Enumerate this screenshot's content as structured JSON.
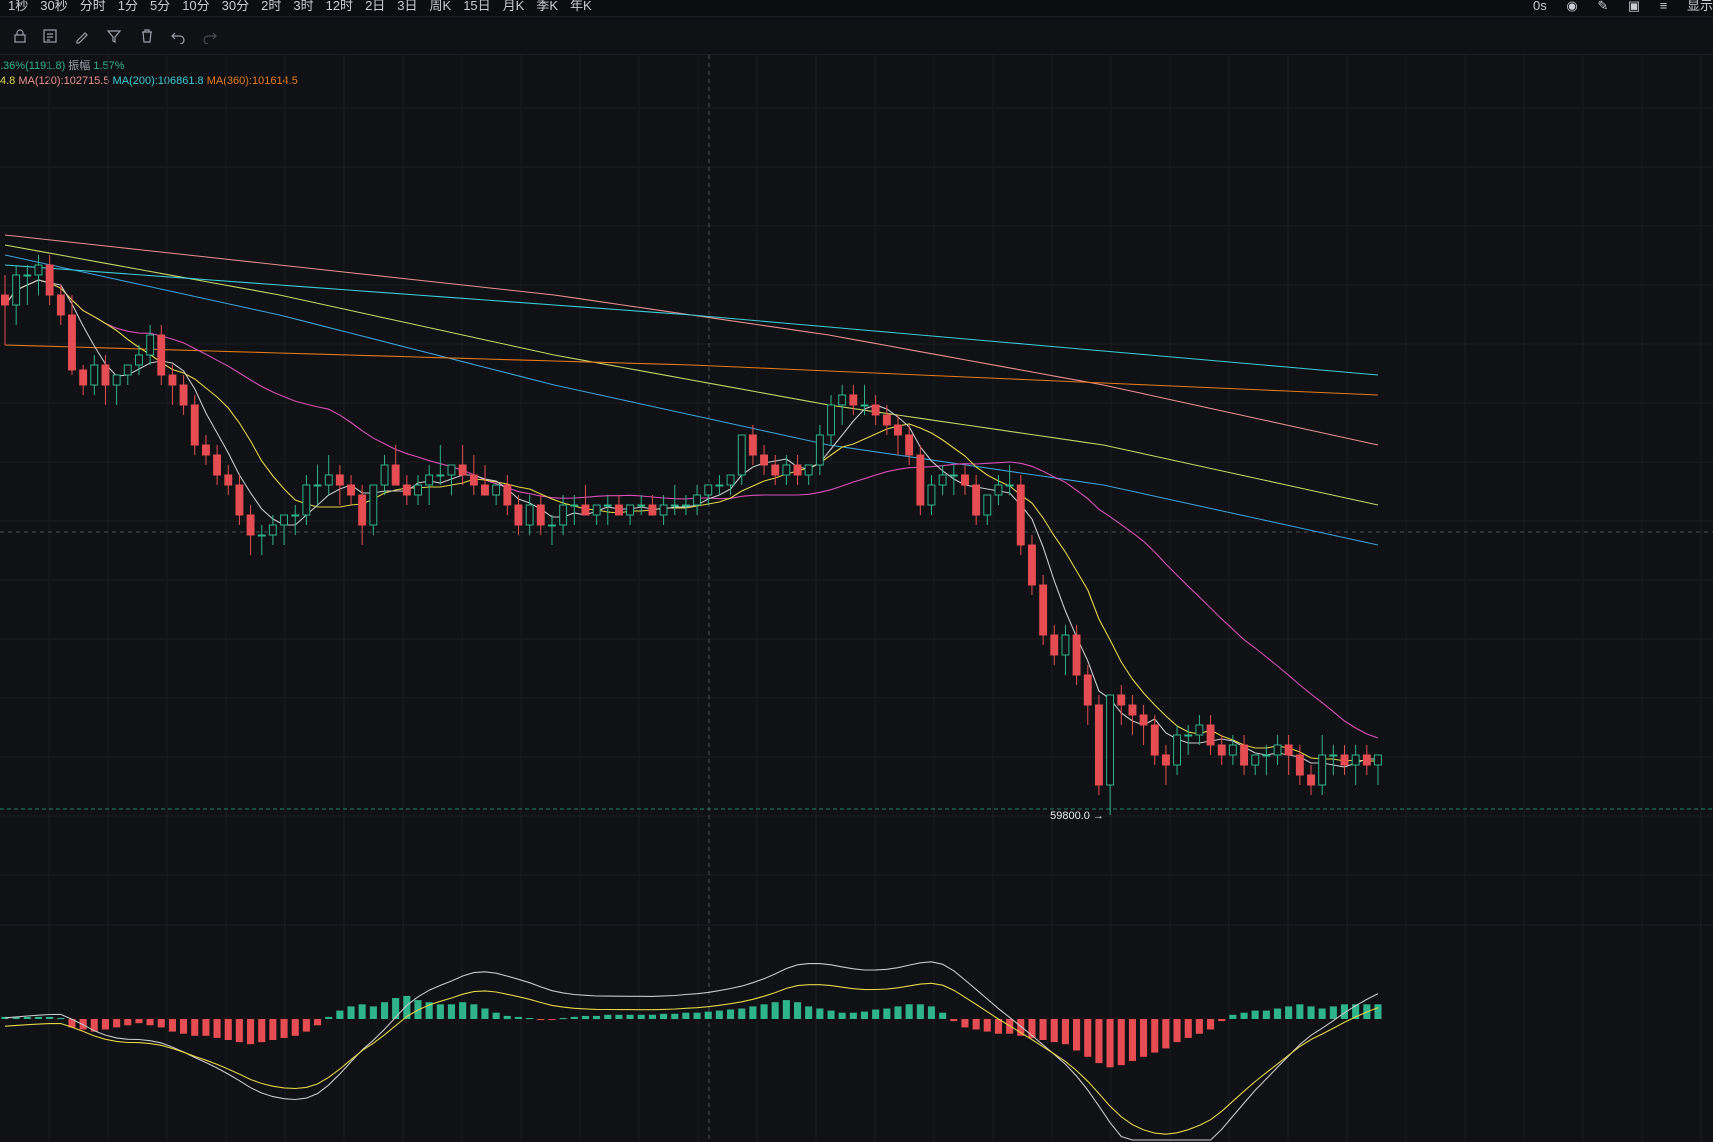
{
  "toolbar": {
    "intervals": [
      "1秒",
      "30秒",
      "分时",
      "1分",
      "5分",
      "10分",
      "30分",
      "2时",
      "3时",
      "12时",
      "2日",
      "3日",
      "周K",
      "15日",
      "月K",
      "季K",
      "年K"
    ],
    "right_value": "0s",
    "display_label": "显示",
    "tools": [
      "lock-icon",
      "template-icon",
      "draw-icon",
      "filter-icon",
      "trash-icon",
      "undo-icon",
      "redo-icon"
    ]
  },
  "info": {
    "change_text": ".36%(1191.8)",
    "amplitude_label": "振幅",
    "amplitude_value": "1.57%",
    "ma_prefix": "4.8",
    "ma120": "MA(120):102715.5",
    "ma200": "MA(200):106861.8",
    "ma360": "MA(360):101614.5"
  },
  "colors": {
    "up": "#2fb38b",
    "down": "#e54d52",
    "ma_fast": "#c8c8c8",
    "ma_short": "#e3d44a",
    "ma_magenta": "#d64fb7",
    "ma_blue": "#3b9fd6",
    "ma_green_yellow": "#c6d469",
    "ma_pink": "#e88f8f",
    "ma120": "#e0d06a",
    "ma200": "#3ecbd6",
    "ma360": "#e27a1c"
  },
  "chart_data": {
    "type": "candlestick",
    "low_label": "59800.0",
    "candles": [
      [
        93,
        95,
        88,
        92
      ],
      [
        92,
        96,
        90,
        95
      ],
      [
        95,
        96,
        92,
        95
      ],
      [
        95,
        97,
        93,
        96
      ],
      [
        96,
        97,
        92,
        93
      ],
      [
        93,
        94,
        90,
        91
      ],
      [
        91,
        93,
        85,
        85.5
      ],
      [
        85.5,
        86,
        83,
        84
      ],
      [
        84,
        87,
        83,
        86
      ],
      [
        86,
        87,
        82,
        84
      ],
      [
        84,
        85,
        82,
        85
      ],
      [
        85,
        86,
        84,
        86
      ],
      [
        86,
        88,
        85,
        87
      ],
      [
        87,
        90,
        86,
        89
      ],
      [
        89,
        90,
        84,
        85
      ],
      [
        85,
        86,
        82,
        84
      ],
      [
        84,
        85,
        81,
        82
      ],
      [
        82,
        83,
        77,
        78
      ],
      [
        78,
        79,
        76,
        77
      ],
      [
        77,
        78,
        74,
        75
      ],
      [
        75,
        76,
        73,
        74
      ],
      [
        74,
        75,
        70,
        71
      ],
      [
        71,
        72,
        67,
        69
      ],
      [
        69,
        70,
        67,
        69
      ],
      [
        69,
        71,
        68,
        70
      ],
      [
        70,
        71,
        68,
        71
      ],
      [
        71,
        72,
        69,
        71
      ],
      [
        71,
        75,
        70,
        74
      ],
      [
        74,
        76,
        72,
        74
      ],
      [
        74,
        77,
        73,
        75
      ],
      [
        75,
        76,
        72,
        74
      ],
      [
        74,
        75,
        72,
        73
      ],
      [
        73,
        74,
        68,
        70
      ],
      [
        70,
        74,
        69,
        74
      ],
      [
        74,
        77,
        73,
        76
      ],
      [
        76,
        78,
        74,
        74
      ],
      [
        74,
        75,
        72,
        73
      ],
      [
        73,
        75,
        72,
        74
      ],
      [
        74,
        76,
        72,
        75
      ],
      [
        75,
        78,
        74,
        75
      ],
      [
        75,
        76,
        73,
        76
      ],
      [
        76,
        78,
        74,
        75
      ],
      [
        75,
        77,
        73,
        74
      ],
      [
        74,
        76,
        73,
        73
      ],
      [
        73,
        74,
        72,
        74
      ],
      [
        74,
        75,
        71,
        72
      ],
      [
        72,
        73,
        69,
        70
      ],
      [
        70,
        73,
        69,
        72
      ],
      [
        72,
        73,
        69,
        70
      ],
      [
        70,
        71,
        68,
        70
      ],
      [
        70,
        73,
        69,
        72
      ],
      [
        72,
        73,
        70,
        72
      ],
      [
        72,
        74,
        71,
        71
      ],
      [
        71,
        72,
        70,
        72
      ],
      [
        72,
        73,
        70,
        72
      ],
      [
        72,
        73,
        71,
        71
      ],
      [
        71,
        72,
        70,
        72
      ],
      [
        72,
        73,
        71,
        72
      ],
      [
        72,
        73,
        71,
        71
      ],
      [
        71,
        73,
        70,
        72
      ],
      [
        72,
        74,
        71,
        72
      ],
      [
        72,
        73,
        71,
        72
      ],
      [
        72,
        74,
        71,
        73
      ],
      [
        73,
        74,
        72,
        74
      ],
      [
        74,
        75,
        73,
        74
      ],
      [
        74,
        75,
        73,
        75
      ],
      [
        75,
        79,
        74,
        79
      ],
      [
        79,
        80,
        76,
        77
      ],
      [
        77,
        78,
        75,
        76
      ],
      [
        76,
        77,
        74,
        75
      ],
      [
        75,
        77,
        74,
        76
      ],
      [
        76,
        77,
        74,
        75
      ],
      [
        75,
        76,
        74,
        76
      ],
      [
        76,
        80,
        75,
        79
      ],
      [
        79,
        83,
        78,
        82
      ],
      [
        82,
        84,
        80,
        83
      ],
      [
        83,
        84,
        81,
        82
      ],
      [
        82,
        84,
        81,
        82
      ],
      [
        82,
        83,
        80,
        81
      ],
      [
        81,
        82,
        79,
        80
      ],
      [
        80,
        81,
        77,
        79
      ],
      [
        79,
        80,
        76,
        77
      ],
      [
        77,
        78,
        71,
        72
      ],
      [
        72,
        75,
        71,
        74
      ],
      [
        74,
        76,
        73,
        75
      ],
      [
        75,
        76,
        73,
        75
      ],
      [
        75,
        76,
        73,
        74
      ],
      [
        74,
        75,
        70,
        71
      ],
      [
        71,
        73,
        70,
        73
      ],
      [
        73,
        75,
        72,
        74
      ],
      [
        74,
        76,
        73,
        74
      ],
      [
        74,
        75,
        67,
        68
      ],
      [
        68,
        69,
        63,
        64
      ],
      [
        64,
        65,
        58,
        59
      ],
      [
        59,
        60,
        56,
        57
      ],
      [
        57,
        60,
        55,
        59
      ],
      [
        59,
        60,
        54,
        55
      ],
      [
        55,
        56,
        50,
        52
      ],
      [
        52,
        53,
        43,
        44
      ],
      [
        44,
        53,
        41,
        53
      ],
      [
        53,
        54,
        50,
        52
      ],
      [
        52,
        53,
        49,
        51
      ],
      [
        51,
        52,
        48,
        50
      ],
      [
        50,
        51,
        46,
        47
      ],
      [
        47,
        48,
        44,
        46
      ],
      [
        46,
        50,
        45,
        49
      ],
      [
        49,
        50,
        47,
        49
      ],
      [
        49,
        51,
        48,
        50
      ],
      [
        50,
        51,
        47,
        48
      ],
      [
        48,
        49,
        46,
        47
      ],
      [
        47,
        49,
        46,
        48
      ],
      [
        48,
        49,
        45,
        46
      ],
      [
        46,
        47,
        45,
        47
      ],
      [
        47,
        48,
        45,
        47
      ],
      [
        47,
        49,
        46,
        48
      ],
      [
        48,
        49,
        45,
        47
      ],
      [
        47,
        48,
        44,
        45
      ],
      [
        45,
        46,
        43,
        44
      ],
      [
        44,
        49,
        43,
        47
      ],
      [
        47,
        48,
        45,
        47
      ],
      [
        47,
        48,
        45,
        46
      ],
      [
        46,
        48,
        44,
        47
      ],
      [
        47,
        48,
        45,
        46
      ],
      [
        46,
        47,
        44,
        47
      ]
    ],
    "ma_lines": [
      {
        "color_key": "ma200",
        "values": [
          96,
          91,
          85
        ]
      },
      {
        "color_key": "ma360",
        "values": [
          88,
          86,
          83
        ]
      }
    ],
    "macd": {
      "histogram": [
        2,
        2,
        2,
        2,
        2,
        1,
        -8,
        -10,
        -12,
        -10,
        -8,
        -6,
        -4,
        -6,
        -8,
        -12,
        -14,
        -16,
        -16,
        -18,
        -20,
        -22,
        -24,
        -22,
        -20,
        -18,
        -16,
        -12,
        -6,
        2,
        8,
        12,
        14,
        12,
        16,
        20,
        22,
        18,
        16,
        14,
        14,
        16,
        14,
        10,
        6,
        3,
        2,
        1,
        -1,
        -1,
        1,
        2,
        3,
        3,
        4,
        4,
        4,
        4,
        4,
        5,
        5,
        6,
        6,
        7,
        8,
        9,
        10,
        12,
        14,
        16,
        18,
        16,
        12,
        10,
        8,
        6,
        6,
        7,
        9,
        10,
        12,
        14,
        14,
        12,
        6,
        -2,
        -8,
        -10,
        -12,
        -14,
        -14,
        -16,
        -18,
        -20,
        -22,
        -24,
        -30,
        -36,
        -42,
        -46,
        -44,
        -40,
        -36,
        -32,
        -28,
        -22,
        -18,
        -14,
        -10,
        -2,
        4,
        6,
        8,
        8,
        10,
        12,
        14,
        12,
        10,
        12,
        14,
        14,
        14,
        14
      ]
    }
  }
}
